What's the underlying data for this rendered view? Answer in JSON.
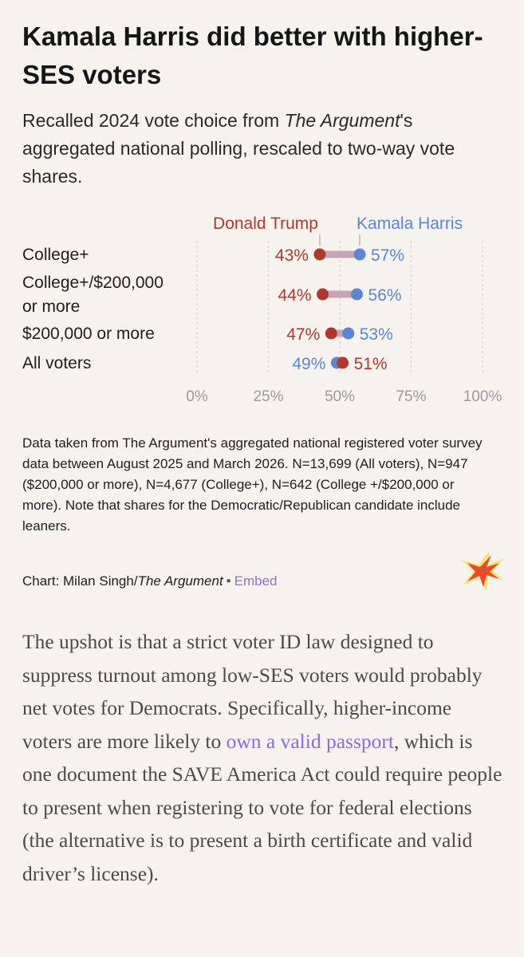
{
  "header": {
    "title": "Kamala Harris did better with higher-SES voters",
    "subtitle_before": "Recalled 2024 vote choice from ",
    "subtitle_italic": "The Argument",
    "subtitle_after": "'s aggregated national polling, rescaled to two-way vote shares."
  },
  "colors": {
    "trump": "#b0392b",
    "harris": "#5b86d4",
    "grid": "#cfcfcf",
    "tick_label": "#9b9b9b"
  },
  "chart_data": {
    "type": "dumbbell",
    "title": "Kamala Harris did better with higher-SES voters",
    "legend": [
      "Donald Trump",
      "Kamala Harris"
    ],
    "categories": [
      [
        "College+"
      ],
      [
        "College+/$200,000",
        "or more"
      ],
      [
        "$200,000 or more"
      ],
      [
        "All voters"
      ]
    ],
    "series": [
      {
        "name": "Donald Trump",
        "values": [
          43,
          44,
          47,
          51
        ],
        "labels": [
          "43%",
          "44%",
          "47%",
          "51%"
        ]
      },
      {
        "name": "Kamala Harris",
        "values": [
          57,
          56,
          53,
          49
        ],
        "labels": [
          "57%",
          "56%",
          "53%",
          "49%"
        ]
      }
    ],
    "x_ticks": [
      0,
      25,
      50,
      75,
      100
    ],
    "x_tick_labels": [
      "0%",
      "25%",
      "50%",
      "75%",
      "100%"
    ],
    "xlim": [
      0,
      100
    ]
  },
  "notes": {
    "source": "Data taken from The Argument's aggregated national registered voter survey data between August 2025 and March 2026. N=13,699 (All voters), N=947 ($200,000 or more), N=4,677 (College+), N=642 (College +/$200,000 or more). Note that shares for the Democratic/Republican candidate include leaners.",
    "credit_prefix": "Chart: Milan Singh/",
    "credit_italic": "The Argument",
    "credit_sep": "•",
    "embed_label": "Embed"
  },
  "article": {
    "p1_before": "The upshot is that a strict voter ID law designed to suppress turnout among low-SES voters would probably net votes for Democrats. Specifically, higher-income voters are more likely to ",
    "p1_link": "own a valid passport",
    "p1_after": ", which is one document the SAVE America Act could require people to present when registering to vote for federal elections (the alternative is to present a birth certificate and valid driver’s license)."
  },
  "logo": {
    "icon": "starburst-logo-icon"
  }
}
